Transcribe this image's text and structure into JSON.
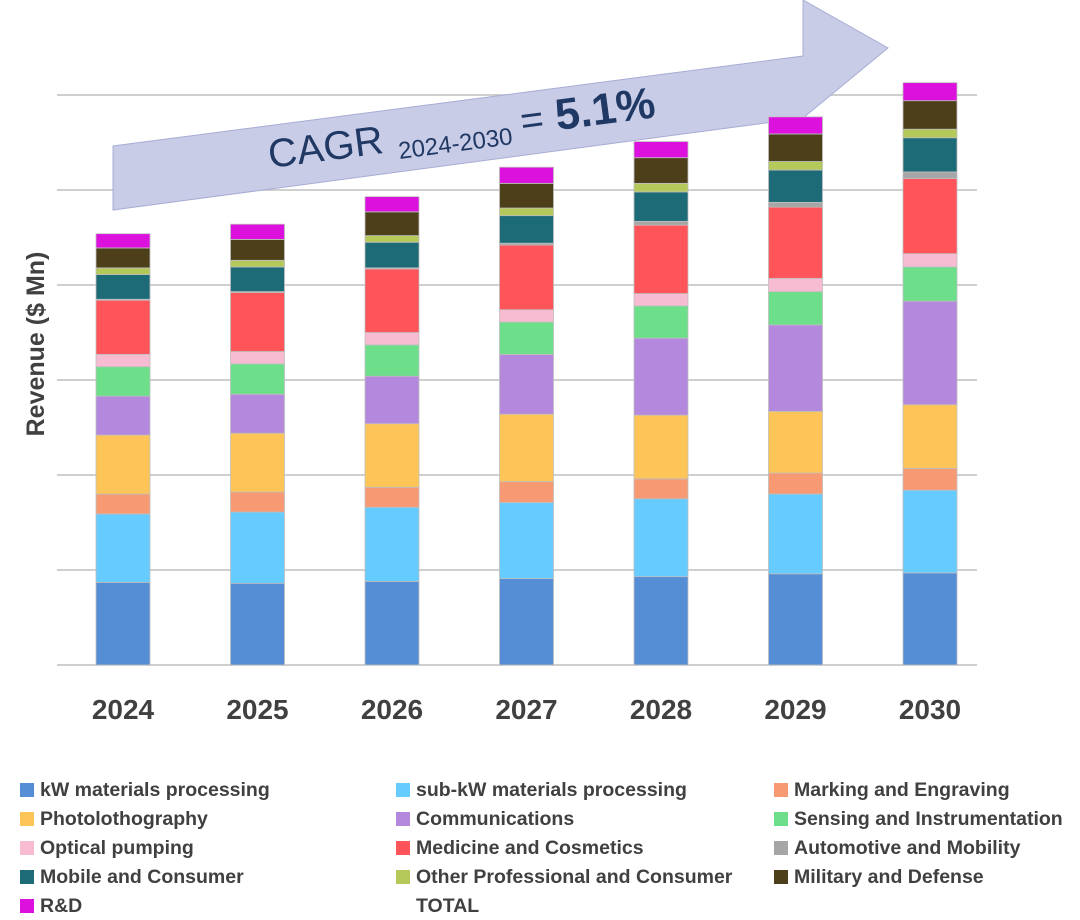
{
  "chart_data": {
    "type": "bar",
    "stacked": true,
    "title": "",
    "xlabel": "",
    "ylabel": "Revenue ($ Mn)",
    "ylim": [
      0,
      6
    ],
    "y_tick_labels_shown": false,
    "grid": true,
    "legend_position": "bottom",
    "annotation": {
      "text": "CAGR",
      "subscript": "2024-2030",
      "operator": "=",
      "value": "5.1%"
    },
    "categories": [
      "2024",
      "2025",
      "2026",
      "2027",
      "2028",
      "2029",
      "2030"
    ],
    "series": [
      {
        "name": "kW materials processing",
        "color": "#558ed5",
        "values": [
          0.87,
          0.86,
          0.88,
          0.91,
          0.93,
          0.96,
          0.97
        ]
      },
      {
        "name": "sub-kW materials processing",
        "color": "#66ccff",
        "values": [
          0.72,
          0.75,
          0.78,
          0.8,
          0.82,
          0.84,
          0.87
        ]
      },
      {
        "name": "Marking and Engraving",
        "color": "#f79a74",
        "values": [
          0.21,
          0.21,
          0.21,
          0.22,
          0.21,
          0.22,
          0.23
        ]
      },
      {
        "name": "Photolothography",
        "color": "#fdc558",
        "values": [
          0.62,
          0.62,
          0.67,
          0.71,
          0.67,
          0.65,
          0.67
        ]
      },
      {
        "name": "Communications",
        "color": "#b388dd",
        "values": [
          0.41,
          0.41,
          0.5,
          0.63,
          0.81,
          0.91,
          1.09
        ]
      },
      {
        "name": "Sensing and Instrumentation",
        "color": "#6ddf8a",
        "values": [
          0.31,
          0.32,
          0.33,
          0.34,
          0.34,
          0.35,
          0.36
        ]
      },
      {
        "name": "Optical pumping",
        "color": "#f8bcd2",
        "values": [
          0.13,
          0.13,
          0.13,
          0.13,
          0.13,
          0.14,
          0.14
        ]
      },
      {
        "name": "Medicine and Cosmetics",
        "color": "#ff5459",
        "values": [
          0.57,
          0.62,
          0.67,
          0.68,
          0.72,
          0.75,
          0.79
        ]
      },
      {
        "name": "Automotive and Mobility",
        "color": "#a6a6a6",
        "values": [
          0.01,
          0.01,
          0.01,
          0.02,
          0.04,
          0.05,
          0.07
        ]
      },
      {
        "name": "Mobile and Consumer",
        "color": "#1c6b76",
        "values": [
          0.26,
          0.26,
          0.27,
          0.29,
          0.31,
          0.34,
          0.36
        ]
      },
      {
        "name": "Other Professional and Consumer",
        "color": "#b5c85a",
        "values": [
          0.07,
          0.07,
          0.07,
          0.08,
          0.09,
          0.09,
          0.09
        ]
      },
      {
        "name": "Military and Defense",
        "color": "#4c3f1a",
        "values": [
          0.21,
          0.22,
          0.25,
          0.26,
          0.27,
          0.29,
          0.3
        ]
      },
      {
        "name": "R&D",
        "color": "#dd11dd",
        "values": [
          0.15,
          0.16,
          0.16,
          0.17,
          0.17,
          0.18,
          0.19
        ]
      }
    ],
    "total_legend_label": "TOTAL"
  }
}
